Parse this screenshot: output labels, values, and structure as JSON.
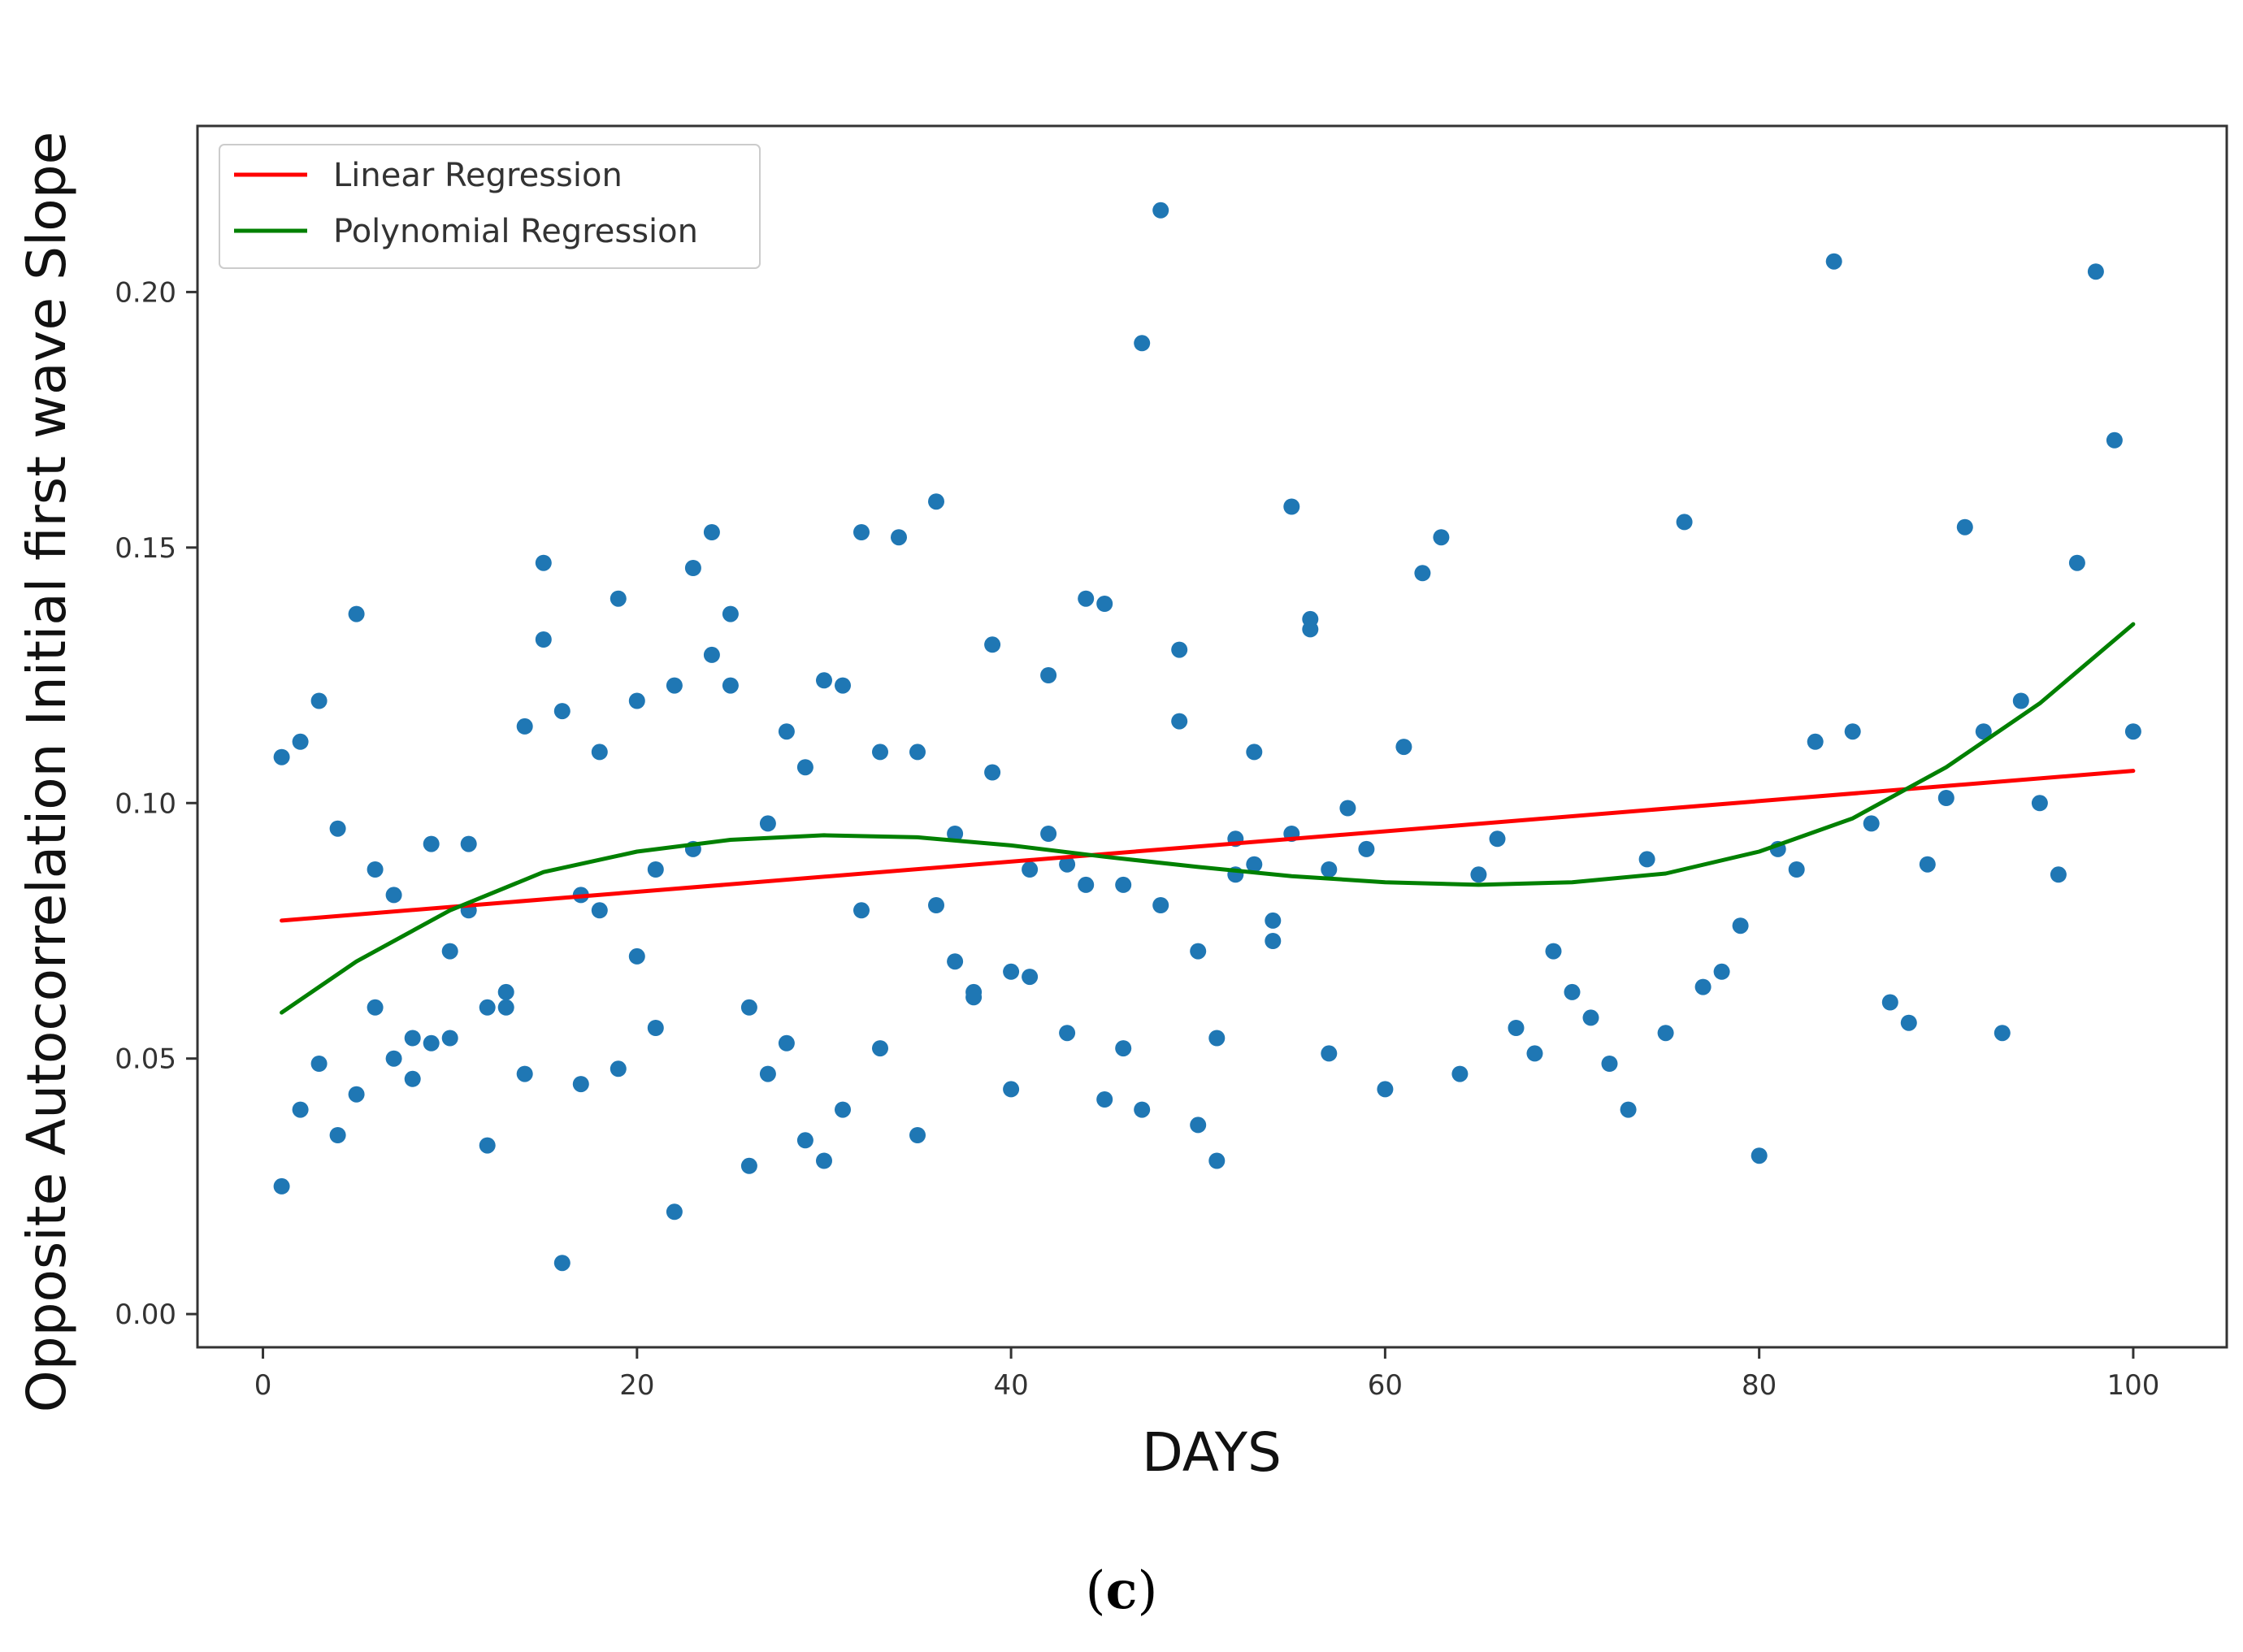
{
  "chart_data": {
    "type": "scatter",
    "xlabel": "DAYS",
    "ylabel": "Opposite Autocorrelation Initial first wave Slope",
    "xlim": [
      -3.5,
      105
    ],
    "ylim": [
      -0.0065,
      0.2325
    ],
    "xticks": [
      0,
      20,
      40,
      60,
      80,
      100
    ],
    "yticks": [
      0.0,
      0.05,
      0.1,
      0.15,
      0.2
    ],
    "xtick_labels": [
      "0",
      "20",
      "40",
      "60",
      "80",
      "100"
    ],
    "ytick_labels": [
      "0.00",
      "0.05",
      "0.10",
      "0.15",
      "0.20"
    ],
    "legend": {
      "position": "top-left",
      "entries": [
        {
          "label": "Linear Regression",
          "color": "#ff0000"
        },
        {
          "label": "Polynomial Regression",
          "color": "#008000"
        }
      ]
    },
    "scatter_color": "#1f77b4",
    "points": [
      [
        1,
        0.109
      ],
      [
        1,
        0.025
      ],
      [
        2,
        0.112
      ],
      [
        2,
        0.04
      ],
      [
        3,
        0.12
      ],
      [
        3,
        0.049
      ],
      [
        4,
        0.095
      ],
      [
        4,
        0.035
      ],
      [
        5,
        0.137
      ],
      [
        5,
        0.043
      ],
      [
        6,
        0.087
      ],
      [
        6,
        0.06
      ],
      [
        7,
        0.082
      ],
      [
        7,
        0.05
      ],
      [
        8,
        0.054
      ],
      [
        8,
        0.046
      ],
      [
        9,
        0.092
      ],
      [
        9,
        0.053
      ],
      [
        10,
        0.071
      ],
      [
        10,
        0.054
      ],
      [
        11,
        0.092
      ],
      [
        11,
        0.079
      ],
      [
        12,
        0.06
      ],
      [
        12,
        0.033
      ],
      [
        13,
        0.063
      ],
      [
        13,
        0.06
      ],
      [
        14,
        0.115
      ],
      [
        14,
        0.047
      ],
      [
        15,
        0.147
      ],
      [
        15,
        0.132
      ],
      [
        16,
        0.118
      ],
      [
        16,
        0.01
      ],
      [
        17,
        0.082
      ],
      [
        17,
        0.045
      ],
      [
        18,
        0.11
      ],
      [
        18,
        0.079
      ],
      [
        19,
        0.14
      ],
      [
        19,
        0.048
      ],
      [
        20,
        0.12
      ],
      [
        20,
        0.07
      ],
      [
        21,
        0.087
      ],
      [
        21,
        0.056
      ],
      [
        22,
        0.123
      ],
      [
        22,
        0.02
      ],
      [
        23,
        0.146
      ],
      [
        23,
        0.091
      ],
      [
        24,
        0.153
      ],
      [
        24,
        0.129
      ],
      [
        25,
        0.137
      ],
      [
        25,
        0.123
      ],
      [
        26,
        0.06
      ],
      [
        26,
        0.029
      ],
      [
        27,
        0.096
      ],
      [
        27,
        0.047
      ],
      [
        28,
        0.114
      ],
      [
        28,
        0.053
      ],
      [
        29,
        0.107
      ],
      [
        29,
        0.034
      ],
      [
        30,
        0.124
      ],
      [
        30,
        0.03
      ],
      [
        31,
        0.123
      ],
      [
        31,
        0.04
      ],
      [
        32,
        0.153
      ],
      [
        32,
        0.079
      ],
      [
        33,
        0.11
      ],
      [
        33,
        0.052
      ],
      [
        34,
        0.152
      ],
      [
        35,
        0.11
      ],
      [
        35,
        0.035
      ],
      [
        36,
        0.159
      ],
      [
        36,
        0.08
      ],
      [
        37,
        0.094
      ],
      [
        37,
        0.069
      ],
      [
        38,
        0.063
      ],
      [
        38,
        0.062
      ],
      [
        39,
        0.131
      ],
      [
        39,
        0.106
      ],
      [
        40,
        0.067
      ],
      [
        40,
        0.044
      ],
      [
        41,
        0.087
      ],
      [
        41,
        0.066
      ],
      [
        42,
        0.125
      ],
      [
        42,
        0.094
      ],
      [
        43,
        0.088
      ],
      [
        43,
        0.055
      ],
      [
        44,
        0.14
      ],
      [
        44,
        0.084
      ],
      [
        45,
        0.139
      ],
      [
        45,
        0.042
      ],
      [
        46,
        0.084
      ],
      [
        46,
        0.052
      ],
      [
        47,
        0.19
      ],
      [
        47,
        0.04
      ],
      [
        48,
        0.216
      ],
      [
        48,
        0.08
      ],
      [
        49,
        0.13
      ],
      [
        49,
        0.116
      ],
      [
        50,
        0.071
      ],
      [
        50,
        0.037
      ],
      [
        51,
        0.054
      ],
      [
        51,
        0.03
      ],
      [
        52,
        0.093
      ],
      [
        52,
        0.086
      ],
      [
        53,
        0.11
      ],
      [
        53,
        0.088
      ],
      [
        54,
        0.077
      ],
      [
        54,
        0.073
      ],
      [
        55,
        0.158
      ],
      [
        55,
        0.094
      ],
      [
        56,
        0.136
      ],
      [
        56,
        0.134
      ],
      [
        57,
        0.087
      ],
      [
        57,
        0.051
      ],
      [
        58,
        0.099
      ],
      [
        59,
        0.091
      ],
      [
        60,
        0.044
      ],
      [
        61,
        0.111
      ],
      [
        62,
        0.145
      ],
      [
        63,
        0.152
      ],
      [
        64,
        0.047
      ],
      [
        65,
        0.086
      ],
      [
        66,
        0.093
      ],
      [
        67,
        0.056
      ],
      [
        68,
        0.051
      ],
      [
        69,
        0.071
      ],
      [
        70,
        0.063
      ],
      [
        71,
        0.058
      ],
      [
        72,
        0.049
      ],
      [
        73,
        0.04
      ],
      [
        74,
        0.089
      ],
      [
        75,
        0.055
      ],
      [
        76,
        0.155
      ],
      [
        77,
        0.064
      ],
      [
        78,
        0.067
      ],
      [
        79,
        0.076
      ],
      [
        80,
        0.031
      ],
      [
        81,
        0.091
      ],
      [
        82,
        0.087
      ],
      [
        83,
        0.112
      ],
      [
        84,
        0.206
      ],
      [
        85,
        0.114
      ],
      [
        86,
        0.096
      ],
      [
        87,
        0.061
      ],
      [
        88,
        0.057
      ],
      [
        89,
        0.088
      ],
      [
        90,
        0.101
      ],
      [
        91,
        0.154
      ],
      [
        92,
        0.114
      ],
      [
        93,
        0.055
      ],
      [
        94,
        0.12
      ],
      [
        95,
        0.1
      ],
      [
        96,
        0.086
      ],
      [
        97,
        0.147
      ],
      [
        98,
        0.204
      ],
      [
        99,
        0.171
      ],
      [
        100,
        0.114
      ]
    ],
    "series": [
      {
        "name": "Linear Regression",
        "color": "#ff0000",
        "x": [
          1,
          100
        ],
        "y": [
          0.077,
          0.1063
        ]
      },
      {
        "name": "Polynomial Regression",
        "color": "#008000",
        "x": [
          1,
          5,
          10,
          15,
          20,
          25,
          30,
          35,
          40,
          45,
          50,
          55,
          60,
          65,
          70,
          75,
          80,
          85,
          90,
          95,
          100
        ],
        "y": [
          0.059,
          0.069,
          0.079,
          0.0865,
          0.0905,
          0.0928,
          0.0937,
          0.0933,
          0.0917,
          0.0895,
          0.0875,
          0.0857,
          0.0845,
          0.084,
          0.0845,
          0.0862,
          0.0905,
          0.097,
          0.107,
          0.1195,
          0.135
        ]
      }
    ]
  },
  "caption": {
    "open": "(",
    "letter": "c",
    "close": ")"
  }
}
